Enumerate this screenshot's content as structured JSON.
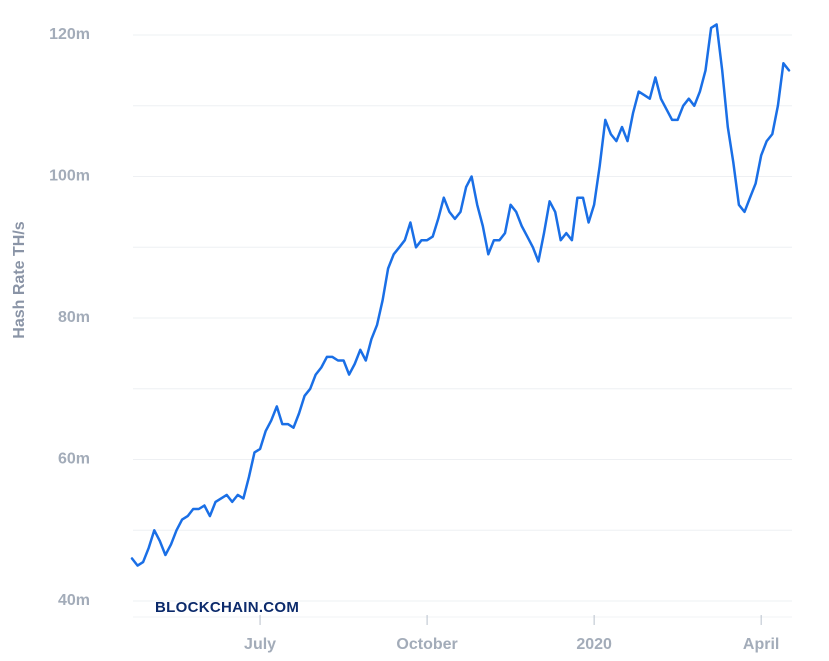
{
  "chart_data": {
    "type": "line",
    "y_label": "Hash Rate TH/s",
    "watermark": "BLOCKCHAIN.COM",
    "categories": [
      null,
      null,
      null,
      null,
      null,
      null,
      null,
      null,
      null,
      null,
      null,
      null,
      null,
      null,
      null,
      null,
      null,
      null,
      null,
      null,
      null,
      null,
      null,
      "July",
      null,
      null,
      null,
      null,
      null,
      null,
      null,
      null,
      null,
      null,
      null,
      null,
      null,
      null,
      null,
      null,
      null,
      null,
      null,
      null,
      null,
      null,
      null,
      null,
      null,
      null,
      null,
      null,
      null,
      "October",
      null,
      null,
      null,
      null,
      null,
      null,
      null,
      null,
      null,
      null,
      null,
      null,
      null,
      null,
      null,
      null,
      null,
      null,
      null,
      null,
      null,
      null,
      null,
      null,
      null,
      null,
      null,
      null,
      null,
      "2020",
      null,
      null,
      null,
      null,
      null,
      null,
      null,
      null,
      null,
      null,
      null,
      null,
      null,
      null,
      null,
      null,
      null,
      null,
      null,
      null,
      null,
      null,
      null,
      null,
      null,
      null,
      null,
      null,
      null,
      "April",
      null,
      null,
      null,
      null,
      null
    ],
    "series": [
      {
        "name": "Hash Rate",
        "color": "#1a6fe6",
        "values": [
          46,
          45,
          45.5,
          47.5,
          50,
          48.5,
          46.5,
          48,
          50,
          51.5,
          52,
          53,
          53,
          53.5,
          52,
          54,
          54.5,
          55,
          54,
          55,
          54.5,
          57.5,
          61,
          61.5,
          64,
          65.5,
          67.5,
          65,
          65,
          64.5,
          66.5,
          69,
          70,
          72,
          73,
          74.5,
          74.5,
          74,
          74,
          72,
          73.5,
          75.5,
          74,
          77,
          79,
          82.5,
          87,
          89,
          90,
          91,
          93.5,
          90,
          91,
          91,
          91.5,
          94,
          97,
          95,
          94,
          95,
          98.5,
          100,
          96,
          93,
          89,
          91,
          91,
          92,
          96,
          95,
          93,
          91.5,
          90,
          88,
          92,
          96.5,
          95,
          91,
          92,
          91,
          97,
          97,
          93.5,
          96,
          101.5,
          108,
          106,
          105,
          107,
          105,
          109,
          112,
          111.5,
          111,
          114,
          111,
          109.5,
          108,
          108,
          110,
          111,
          110,
          112,
          115,
          121,
          121.5,
          115,
          107,
          102,
          96,
          95,
          97,
          99,
          103,
          105,
          106,
          110,
          116,
          115
        ]
      }
    ],
    "ylim": [
      40,
      120
    ],
    "yticks": [
      {
        "value": 40,
        "label": "40m"
      },
      {
        "value": 60,
        "label": "60m"
      },
      {
        "value": 80,
        "label": "80m"
      },
      {
        "value": 100,
        "label": "100m"
      },
      {
        "value": 120,
        "label": "120m"
      }
    ],
    "grid_lines": [
      40,
      50,
      60,
      70,
      80,
      90,
      100,
      110,
      120
    ],
    "grid": true
  }
}
